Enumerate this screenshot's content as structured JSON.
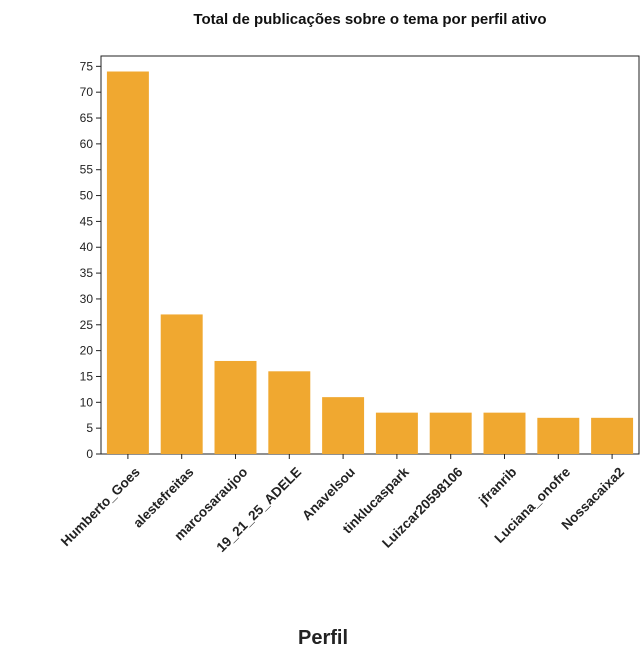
{
  "chart_data": {
    "type": "bar",
    "title": "Total de publicações sobre o tema por perfil ativo",
    "xlabel": "Perfil",
    "ylabel": "",
    "categories": [
      "Humberto_Goes",
      "alestefreitas",
      "marcosaraujoo",
      "19_21_25_ADELE",
      "Anavelsou",
      "tinklucaspark",
      "Luizcar20598106",
      "jfranrib",
      "Luciana_onofre",
      "Nossacaixa2"
    ],
    "values": [
      74,
      27,
      18,
      16,
      11,
      8,
      8,
      8,
      7,
      7
    ],
    "ylim": [
      0,
      77
    ],
    "yticks": [
      0,
      5,
      10,
      15,
      20,
      25,
      30,
      35,
      40,
      45,
      50,
      55,
      60,
      65,
      70,
      75
    ],
    "bar_color": "#f0a830",
    "grid": false,
    "legend": "none"
  }
}
